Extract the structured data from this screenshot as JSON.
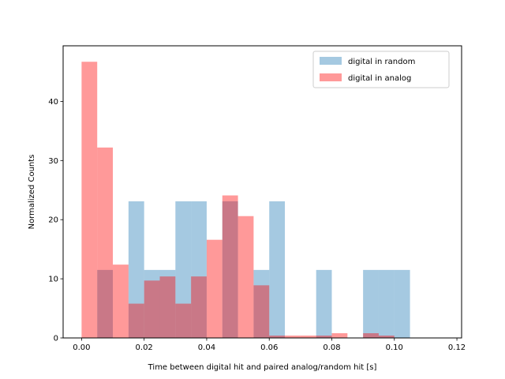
{
  "chart_data": {
    "type": "bar",
    "title": "",
    "xlabel": "Time between digital hit and paired analog/random hit [s]",
    "ylabel": "Normalized Counts",
    "xlim": [
      -0.0059,
      0.1215
    ],
    "ylim": [
      0,
      49.4
    ],
    "xticks": [
      0.0,
      0.02,
      0.04,
      0.06,
      0.08,
      0.1,
      0.12
    ],
    "xtick_labels": [
      "0.00",
      "0.02",
      "0.04",
      "0.06",
      "0.08",
      "0.10",
      "0.12"
    ],
    "yticks": [
      0,
      10,
      20,
      30,
      40
    ],
    "ytick_labels": [
      "0",
      "10",
      "20",
      "30",
      "40"
    ],
    "bin_width": 0.005,
    "grid": false,
    "legend_position": "upper-right",
    "series": [
      {
        "name": "digital in random",
        "color": "#1f77b4",
        "alpha": 0.4,
        "bins": [
          {
            "x": 0.005,
            "value": 11.5
          },
          {
            "x": 0.015,
            "value": 23.1
          },
          {
            "x": 0.02,
            "value": 11.5
          },
          {
            "x": 0.025,
            "value": 11.5
          },
          {
            "x": 0.03,
            "value": 23.1
          },
          {
            "x": 0.035,
            "value": 23.1
          },
          {
            "x": 0.045,
            "value": 23.1
          },
          {
            "x": 0.055,
            "value": 11.5
          },
          {
            "x": 0.06,
            "value": 23.1
          },
          {
            "x": 0.075,
            "value": 11.5
          },
          {
            "x": 0.09,
            "value": 11.5
          },
          {
            "x": 0.095,
            "value": 11.5
          },
          {
            "x": 0.1,
            "value": 11.5
          }
        ]
      },
      {
        "name": "digital in analog",
        "color": "#ff0000",
        "alpha": 0.4,
        "bins": [
          {
            "x": 0.0,
            "value": 46.7
          },
          {
            "x": 0.005,
            "value": 32.2
          },
          {
            "x": 0.01,
            "value": 12.4
          },
          {
            "x": 0.015,
            "value": 5.8
          },
          {
            "x": 0.02,
            "value": 9.7
          },
          {
            "x": 0.025,
            "value": 10.4
          },
          {
            "x": 0.03,
            "value": 5.8
          },
          {
            "x": 0.035,
            "value": 10.4
          },
          {
            "x": 0.04,
            "value": 16.6
          },
          {
            "x": 0.045,
            "value": 24.1
          },
          {
            "x": 0.05,
            "value": 20.6
          },
          {
            "x": 0.055,
            "value": 8.9
          },
          {
            "x": 0.06,
            "value": 0.4
          },
          {
            "x": 0.065,
            "value": 0.4
          },
          {
            "x": 0.07,
            "value": 0.4
          },
          {
            "x": 0.075,
            "value": 0.4
          },
          {
            "x": 0.08,
            "value": 0.8
          },
          {
            "x": 0.09,
            "value": 0.8
          },
          {
            "x": 0.095,
            "value": 0.4
          }
        ]
      }
    ]
  }
}
